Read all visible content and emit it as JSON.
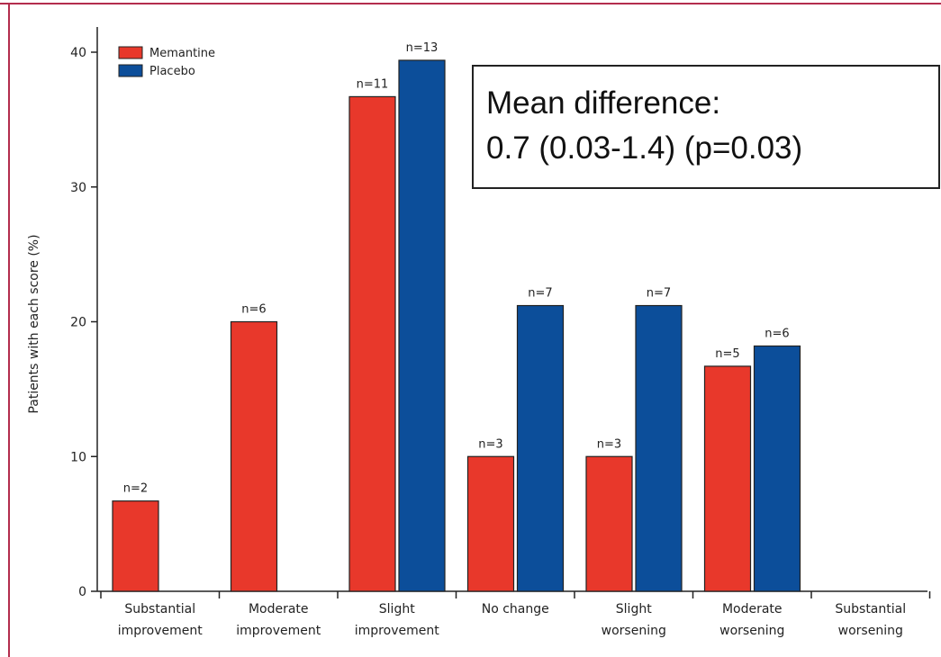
{
  "chart_data": {
    "type": "bar",
    "title": "",
    "xlabel": "",
    "ylabel": "Patients with each score (%)",
    "ylim": [
      0,
      42
    ],
    "yticks": [
      0,
      10,
      20,
      30,
      40
    ],
    "legend_position": "top-left",
    "categories": [
      [
        "Substantial",
        "improvement"
      ],
      [
        "Moderate",
        "improvement"
      ],
      [
        "Slight",
        "improvement"
      ],
      [
        "No change"
      ],
      [
        "Slight",
        "worsening"
      ],
      [
        "Moderate",
        "worsening"
      ],
      [
        "Substantial",
        "worsening"
      ]
    ],
    "series": [
      {
        "name": "Memantine",
        "color": "#e8382b",
        "values": [
          6.7,
          20,
          36.7,
          10,
          10,
          16.7,
          null
        ],
        "labels": [
          "n=2",
          "n=6",
          "n=11",
          "n=3",
          "n=3",
          "n=5",
          null
        ]
      },
      {
        "name": "Placebo",
        "color": "#0c4e9a",
        "values": [
          null,
          null,
          39.4,
          21.2,
          21.2,
          18.2,
          null
        ],
        "labels": [
          null,
          null,
          "n=13",
          "n=7",
          "n=7",
          "n=6",
          null
        ]
      }
    ],
    "grid": false,
    "frame_color": "#b32d4d"
  },
  "annotation": {
    "line1": "Mean difference:",
    "line2": "0.7 (0.03-1.4) (p=0.03)"
  }
}
